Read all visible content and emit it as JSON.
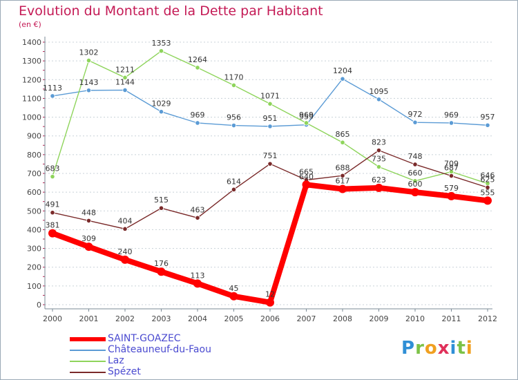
{
  "header": {
    "title": "Evolution du Montant de la Dette par Habitant",
    "subtitle": "(en €)"
  },
  "brand": {
    "letters": [
      "P",
      "r",
      "o",
      "x",
      "i",
      "t",
      "i"
    ],
    "colors": [
      "#2f8fd6",
      "#7cc247",
      "#f0a020",
      "#e0305a",
      "#2f8fd6",
      "#7cc247",
      "#f0a020"
    ]
  },
  "chart_data": {
    "type": "line",
    "x": [
      "2000",
      "2001",
      "2002",
      "2003",
      "2004",
      "2005",
      "2006",
      "2007",
      "2008",
      "2009",
      "2010",
      "2011",
      "2012"
    ],
    "ylim": [
      0,
      1400
    ],
    "yticks": [
      0,
      100,
      200,
      300,
      400,
      500,
      600,
      700,
      800,
      900,
      1000,
      1100,
      1200,
      1300,
      1400
    ],
    "grid": "horizontal",
    "legend": "bottom-left",
    "series": [
      {
        "name": "SAINT-GOAZEC",
        "color": "#ff0000",
        "emphasis": true,
        "values": [
          381,
          309,
          240,
          176,
          113,
          45,
          12,
          640,
          617,
          623,
          600,
          579,
          555
        ],
        "labels": [
          "381",
          "309",
          "240",
          "176",
          "113",
          "45",
          "12",
          "640",
          "617",
          "623",
          "600",
          "579",
          "555"
        ]
      },
      {
        "name": "Châteauneuf-du-Faou",
        "color": "#5b9bd5",
        "values": [
          1113,
          1143,
          1144,
          1029,
          969,
          956,
          951,
          959,
          1204,
          1095,
          972,
          969,
          957
        ],
        "labels": [
          "1113",
          "1143",
          "1144",
          "1029",
          "969",
          "956",
          "951",
          "959",
          "1204",
          "1095",
          "972",
          "969",
          "957"
        ]
      },
      {
        "name": "Laz",
        "color": "#8ed45b",
        "values": [
          683,
          1302,
          1211,
          1353,
          1264,
          1170,
          1071,
          969,
          865,
          735,
          660,
          709,
          646
        ],
        "labels": [
          "683",
          "1302",
          "1211",
          "1353",
          "1264",
          "1170",
          "1071",
          "969",
          "865",
          "735",
          "660",
          "709",
          "646"
        ]
      },
      {
        "name": "Spézet",
        "color": "#7a2a2a",
        "values": [
          491,
          448,
          404,
          515,
          463,
          614,
          751,
          665,
          688,
          823,
          748,
          687,
          625
        ],
        "labels": [
          "491",
          "448",
          "404",
          "515",
          "463",
          "614",
          "751",
          "665",
          "688",
          "823",
          "748",
          "687",
          "625"
        ]
      }
    ]
  }
}
